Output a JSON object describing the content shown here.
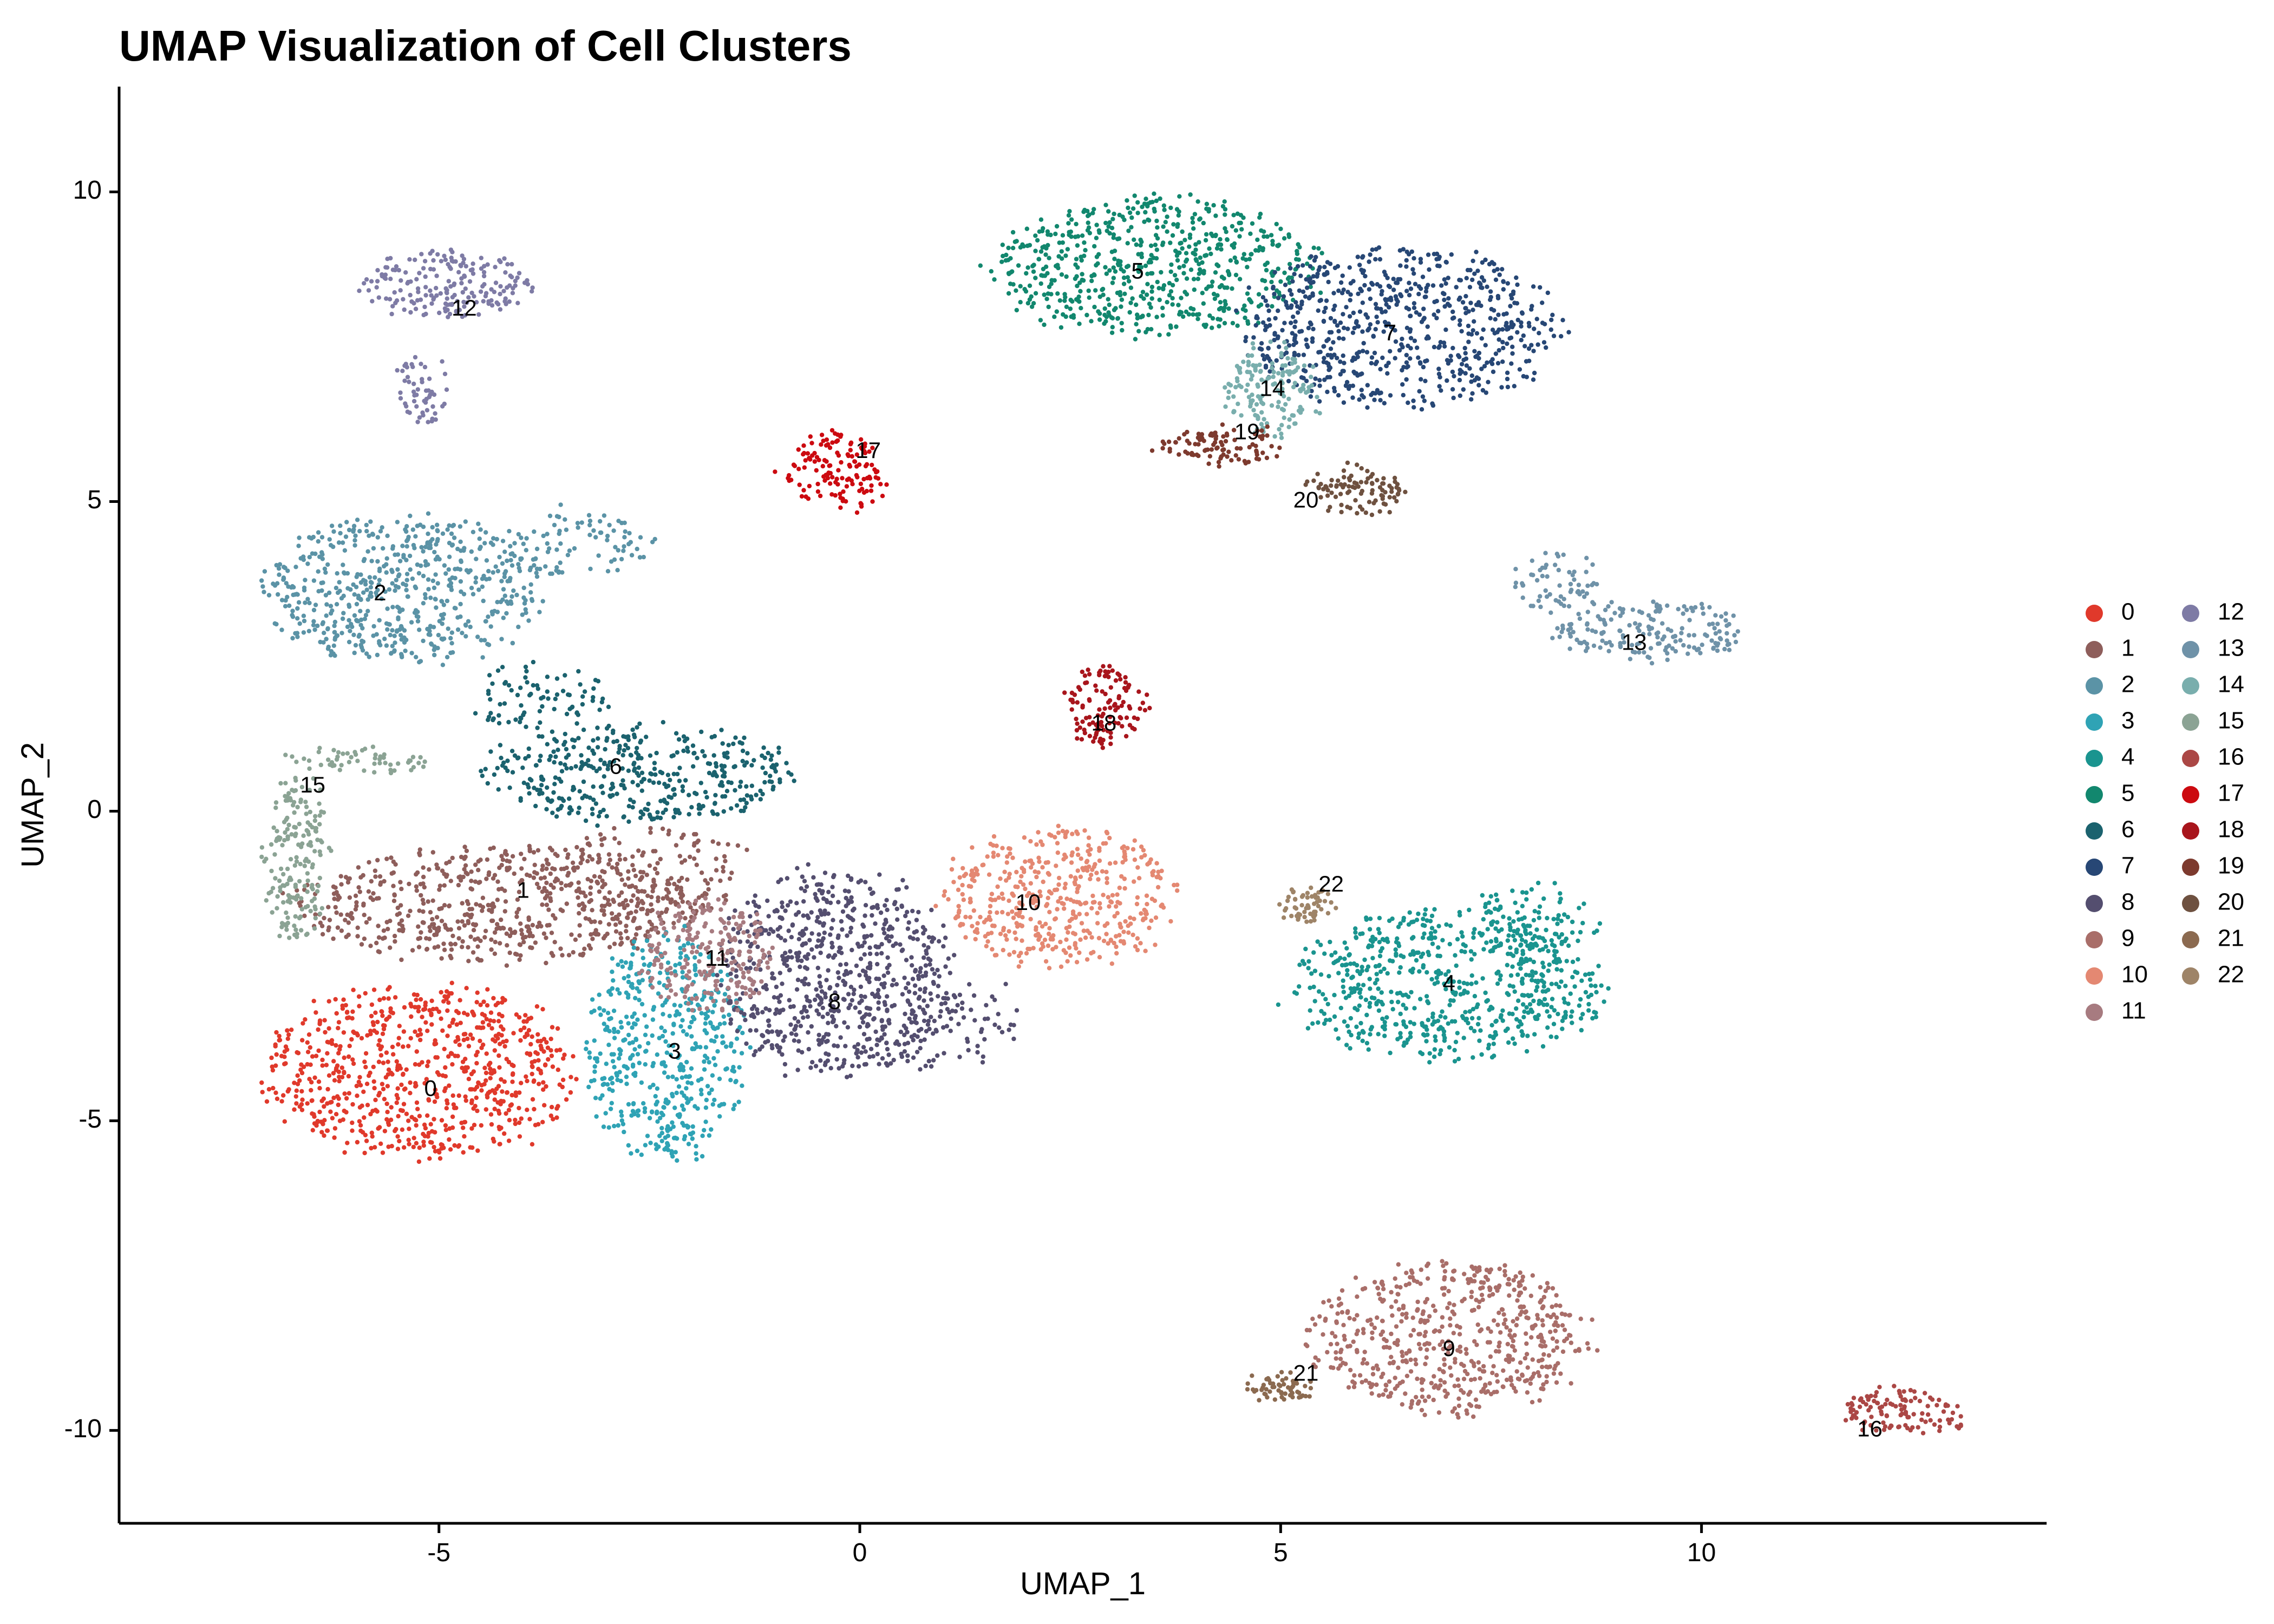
{
  "chart_data": {
    "type": "scatter",
    "title": "UMAP Visualization of Cell Clusters",
    "xlabel": "UMAP_1",
    "ylabel": "UMAP_2",
    "xlim": [
      -8.8,
      14.1
    ],
    "ylim": [
      -11.5,
      11.7
    ],
    "xticks": [
      -5,
      0,
      5,
      10
    ],
    "yticks": [
      -10,
      -5,
      0,
      5,
      10
    ],
    "xtick_labels": [
      "-5",
      "0",
      "5",
      "10"
    ],
    "ytick_labels": [
      "-10",
      "-5",
      "0",
      "5",
      "10"
    ],
    "grid": false,
    "legend_position": "right",
    "legend_columns": 2,
    "clusters": [
      {
        "id": "0",
        "color": "#E0392B",
        "label_pos": [
          -5.1,
          -4.5
        ],
        "shape": [
          [
            -5.2,
            -4.2,
            2.0,
            1.5,
            0.9
          ]
        ]
      },
      {
        "id": "1",
        "color": "#8E5E5B",
        "label_pos": [
          -4.0,
          -1.3
        ],
        "shape": [
          [
            -4.3,
            -1.5,
            2.6,
            1.0,
            0.9
          ],
          [
            -2.5,
            -1.0,
            1.2,
            0.9,
            0.3
          ]
        ]
      },
      {
        "id": "2",
        "color": "#5B93A6",
        "label_pos": [
          -5.7,
          3.5
        ],
        "shape": [
          [
            -5.4,
            3.6,
            1.8,
            1.3,
            0.9
          ],
          [
            -3.4,
            4.3,
            1.0,
            0.6,
            0.3
          ]
        ]
      },
      {
        "id": "3",
        "color": "#2FA3B5",
        "label_pos": [
          -2.2,
          -3.9
        ],
        "shape": [
          [
            -2.3,
            -3.8,
            1.0,
            2.0,
            0.9
          ]
        ]
      },
      {
        "id": "4",
        "color": "#1A948F",
        "label_pos": [
          7.0,
          -2.8
        ],
        "shape": [
          [
            7.0,
            -2.8,
            2.0,
            1.3,
            0.9
          ],
          [
            8.0,
            -1.8,
            0.8,
            0.7,
            0.3
          ]
        ]
      },
      {
        "id": "5",
        "color": "#12876E",
        "label_pos": [
          3.3,
          8.7
        ],
        "shape": [
          [
            3.5,
            8.8,
            2.1,
            1.2,
            0.9
          ]
        ]
      },
      {
        "id": "6",
        "color": "#1B626E",
        "label_pos": [
          -2.9,
          0.7
        ],
        "shape": [
          [
            -2.6,
            0.6,
            2.0,
            0.8,
            0.9
          ],
          [
            -3.8,
            1.8,
            0.9,
            0.6,
            0.3
          ]
        ]
      },
      {
        "id": "7",
        "color": "#274775",
        "label_pos": [
          6.3,
          7.7
        ],
        "shape": [
          [
            6.4,
            7.8,
            2.0,
            1.4,
            0.9
          ]
        ]
      },
      {
        "id": "8",
        "color": "#544E6F",
        "label_pos": [
          -0.3,
          -3.1
        ],
        "shape": [
          [
            -0.3,
            -2.6,
            1.5,
            1.8,
            0.9
          ],
          [
            0.8,
            -3.4,
            1.2,
            0.8,
            0.3
          ]
        ]
      },
      {
        "id": "9",
        "color": "#A96E69",
        "label_pos": [
          7.0,
          -8.7
        ],
        "shape": [
          [
            7.0,
            -8.5,
            1.8,
            1.3,
            0.9
          ]
        ]
      },
      {
        "id": "10",
        "color": "#E48872",
        "label_pos": [
          2.0,
          -1.5
        ],
        "shape": [
          [
            2.4,
            -1.4,
            1.5,
            1.2,
            0.9
          ]
        ]
      },
      {
        "id": "11",
        "color": "#A77B80",
        "label_pos": [
          -1.7,
          -2.4
        ],
        "shape": [
          [
            -1.8,
            -2.3,
            0.8,
            1.0,
            0.9
          ]
        ]
      },
      {
        "id": "12",
        "color": "#7E7BA5",
        "label_pos": [
          -4.7,
          8.1
        ],
        "shape": [
          [
            -4.9,
            8.5,
            1.1,
            0.6,
            0.9
          ],
          [
            -5.2,
            6.8,
            0.3,
            0.6,
            0.3
          ]
        ]
      },
      {
        "id": "13",
        "color": "#6F92A8",
        "label_pos": [
          9.2,
          2.7
        ],
        "shape": [
          [
            9.4,
            2.9,
            1.2,
            0.5,
            0.9
          ],
          [
            8.3,
            3.7,
            0.6,
            0.5,
            0.3
          ]
        ]
      },
      {
        "id": "14",
        "color": "#79AEAD",
        "label_pos": [
          4.9,
          6.8
        ],
        "shape": [
          [
            4.9,
            6.8,
            0.6,
            0.8,
            0.9
          ]
        ]
      },
      {
        "id": "15",
        "color": "#8BA394",
        "label_pos": [
          -6.5,
          0.4
        ],
        "shape": [
          [
            -6.7,
            -0.8,
            0.4,
            1.5,
            0.9
          ],
          [
            -6.0,
            0.8,
            1.0,
            0.2,
            0.3
          ]
        ]
      },
      {
        "id": "16",
        "color": "#AB4745",
        "label_pos": [
          12.0,
          -10.0
        ],
        "shape": [
          [
            12.4,
            -9.7,
            0.8,
            0.4,
            0.9
          ]
        ]
      },
      {
        "id": "17",
        "color": "#CC0A10",
        "label_pos": [
          0.1,
          5.8
        ],
        "shape": [
          [
            -0.3,
            5.5,
            0.6,
            0.7,
            0.9
          ]
        ]
      },
      {
        "id": "18",
        "color": "#A8151C",
        "label_pos": [
          2.9,
          1.4
        ],
        "shape": [
          [
            2.9,
            1.7,
            0.5,
            0.7,
            0.9
          ]
        ]
      },
      {
        "id": "19",
        "color": "#7D3A2E",
        "label_pos": [
          4.6,
          6.1
        ],
        "shape": [
          [
            4.3,
            5.9,
            0.8,
            0.3,
            0.9
          ]
        ]
      },
      {
        "id": "20",
        "color": "#6E5140",
        "label_pos": [
          5.3,
          5.0
        ],
        "shape": [
          [
            5.9,
            5.2,
            0.6,
            0.4,
            0.9
          ]
        ]
      },
      {
        "id": "21",
        "color": "#8B6A50",
        "label_pos": [
          5.3,
          -9.1
        ],
        "shape": [
          [
            5.0,
            -9.3,
            0.4,
            0.2,
            0.9
          ]
        ]
      },
      {
        "id": "22",
        "color": "#9E8468",
        "label_pos": [
          5.6,
          -1.2
        ],
        "shape": [
          [
            5.3,
            -1.5,
            0.3,
            0.3,
            0.9
          ]
        ]
      }
    ]
  }
}
